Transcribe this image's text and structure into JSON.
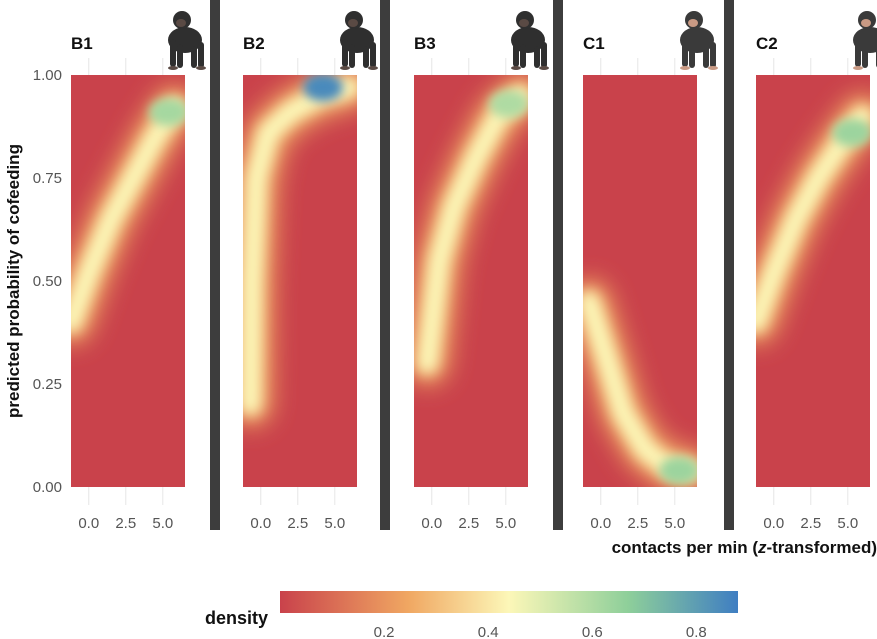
{
  "chart_data": {
    "type": "heatmap",
    "title": "",
    "ylabel": "predicted probability of cofeeding",
    "xlabel_parts": [
      "contacts per min (",
      "z",
      "-transformed)"
    ],
    "ylim": [
      0,
      1
    ],
    "y_ticks": [
      "0.00",
      "0.25",
      "0.50",
      "0.75",
      "1.00"
    ],
    "y_tick_values": [
      0,
      0.25,
      0.5,
      0.75,
      1.0
    ],
    "xlim": [
      -1.2,
      6.5
    ],
    "x_ticks": [
      "0.0",
      "2.5",
      "5.0"
    ],
    "x_tick_values": [
      0,
      2.5,
      5.0
    ],
    "grid": true,
    "panels": [
      {
        "label": "B1",
        "icon": "bonobo-icon",
        "ridge": [
          [
            -1.2,
            0.4
          ],
          [
            0,
            0.52
          ],
          [
            1.5,
            0.65
          ],
          [
            3,
            0.75
          ],
          [
            4.5,
            0.85
          ],
          [
            5.8,
            0.92
          ]
        ],
        "peak": {
          "x": 5.4,
          "y": 0.91,
          "density": 0.62
        }
      },
      {
        "label": "B2",
        "icon": "bonobo-icon",
        "ridge": [
          [
            -0.7,
            0.2
          ],
          [
            -0.6,
            0.5
          ],
          [
            -0.3,
            0.75
          ],
          [
            0.5,
            0.86
          ],
          [
            2,
            0.91
          ],
          [
            4,
            0.95
          ],
          [
            6,
            0.97
          ]
        ],
        "peak": {
          "x": 4.2,
          "y": 0.97,
          "density": 0.85
        }
      },
      {
        "label": "B3",
        "icon": "bonobo-icon",
        "ridge": [
          [
            -0.3,
            0.3
          ],
          [
            0.5,
            0.55
          ],
          [
            1.5,
            0.68
          ],
          [
            3,
            0.8
          ],
          [
            4.5,
            0.9
          ],
          [
            6,
            0.95
          ]
        ],
        "peak": {
          "x": 5.2,
          "y": 0.93,
          "density": 0.6
        }
      },
      {
        "label": "C1",
        "icon": "chimpanzee-icon",
        "ridge": [
          [
            -0.8,
            0.45
          ],
          [
            0.5,
            0.3
          ],
          [
            1.5,
            0.18
          ],
          [
            3,
            0.09
          ],
          [
            4.5,
            0.05
          ],
          [
            6,
            0.04
          ]
        ],
        "peak": {
          "x": 5.3,
          "y": 0.04,
          "density": 0.64
        }
      },
      {
        "label": "C2",
        "icon": "chimpanzee-icon",
        "ridge": [
          [
            -1.2,
            0.4
          ],
          [
            0,
            0.52
          ],
          [
            1.5,
            0.65
          ],
          [
            3,
            0.75
          ],
          [
            4.5,
            0.83
          ],
          [
            6,
            0.9
          ]
        ],
        "peak": {
          "x": 5.3,
          "y": 0.86,
          "density": 0.64
        }
      }
    ],
    "legend": {
      "title": "density",
      "ticks": [
        "0.2",
        "0.4",
        "0.6",
        "0.8"
      ],
      "tick_values": [
        0.2,
        0.4,
        0.6,
        0.8
      ],
      "range": [
        0.0,
        0.88
      ],
      "placement": "bottom"
    },
    "colors": {
      "low": "#c9424b",
      "mid_low": "#f0a762",
      "mid": "#fcf7b8",
      "mid_high": "#8ecf9a",
      "high": "#3f7ec2",
      "separator": "#3d3d3d",
      "grid": "#e6e6e6"
    }
  }
}
